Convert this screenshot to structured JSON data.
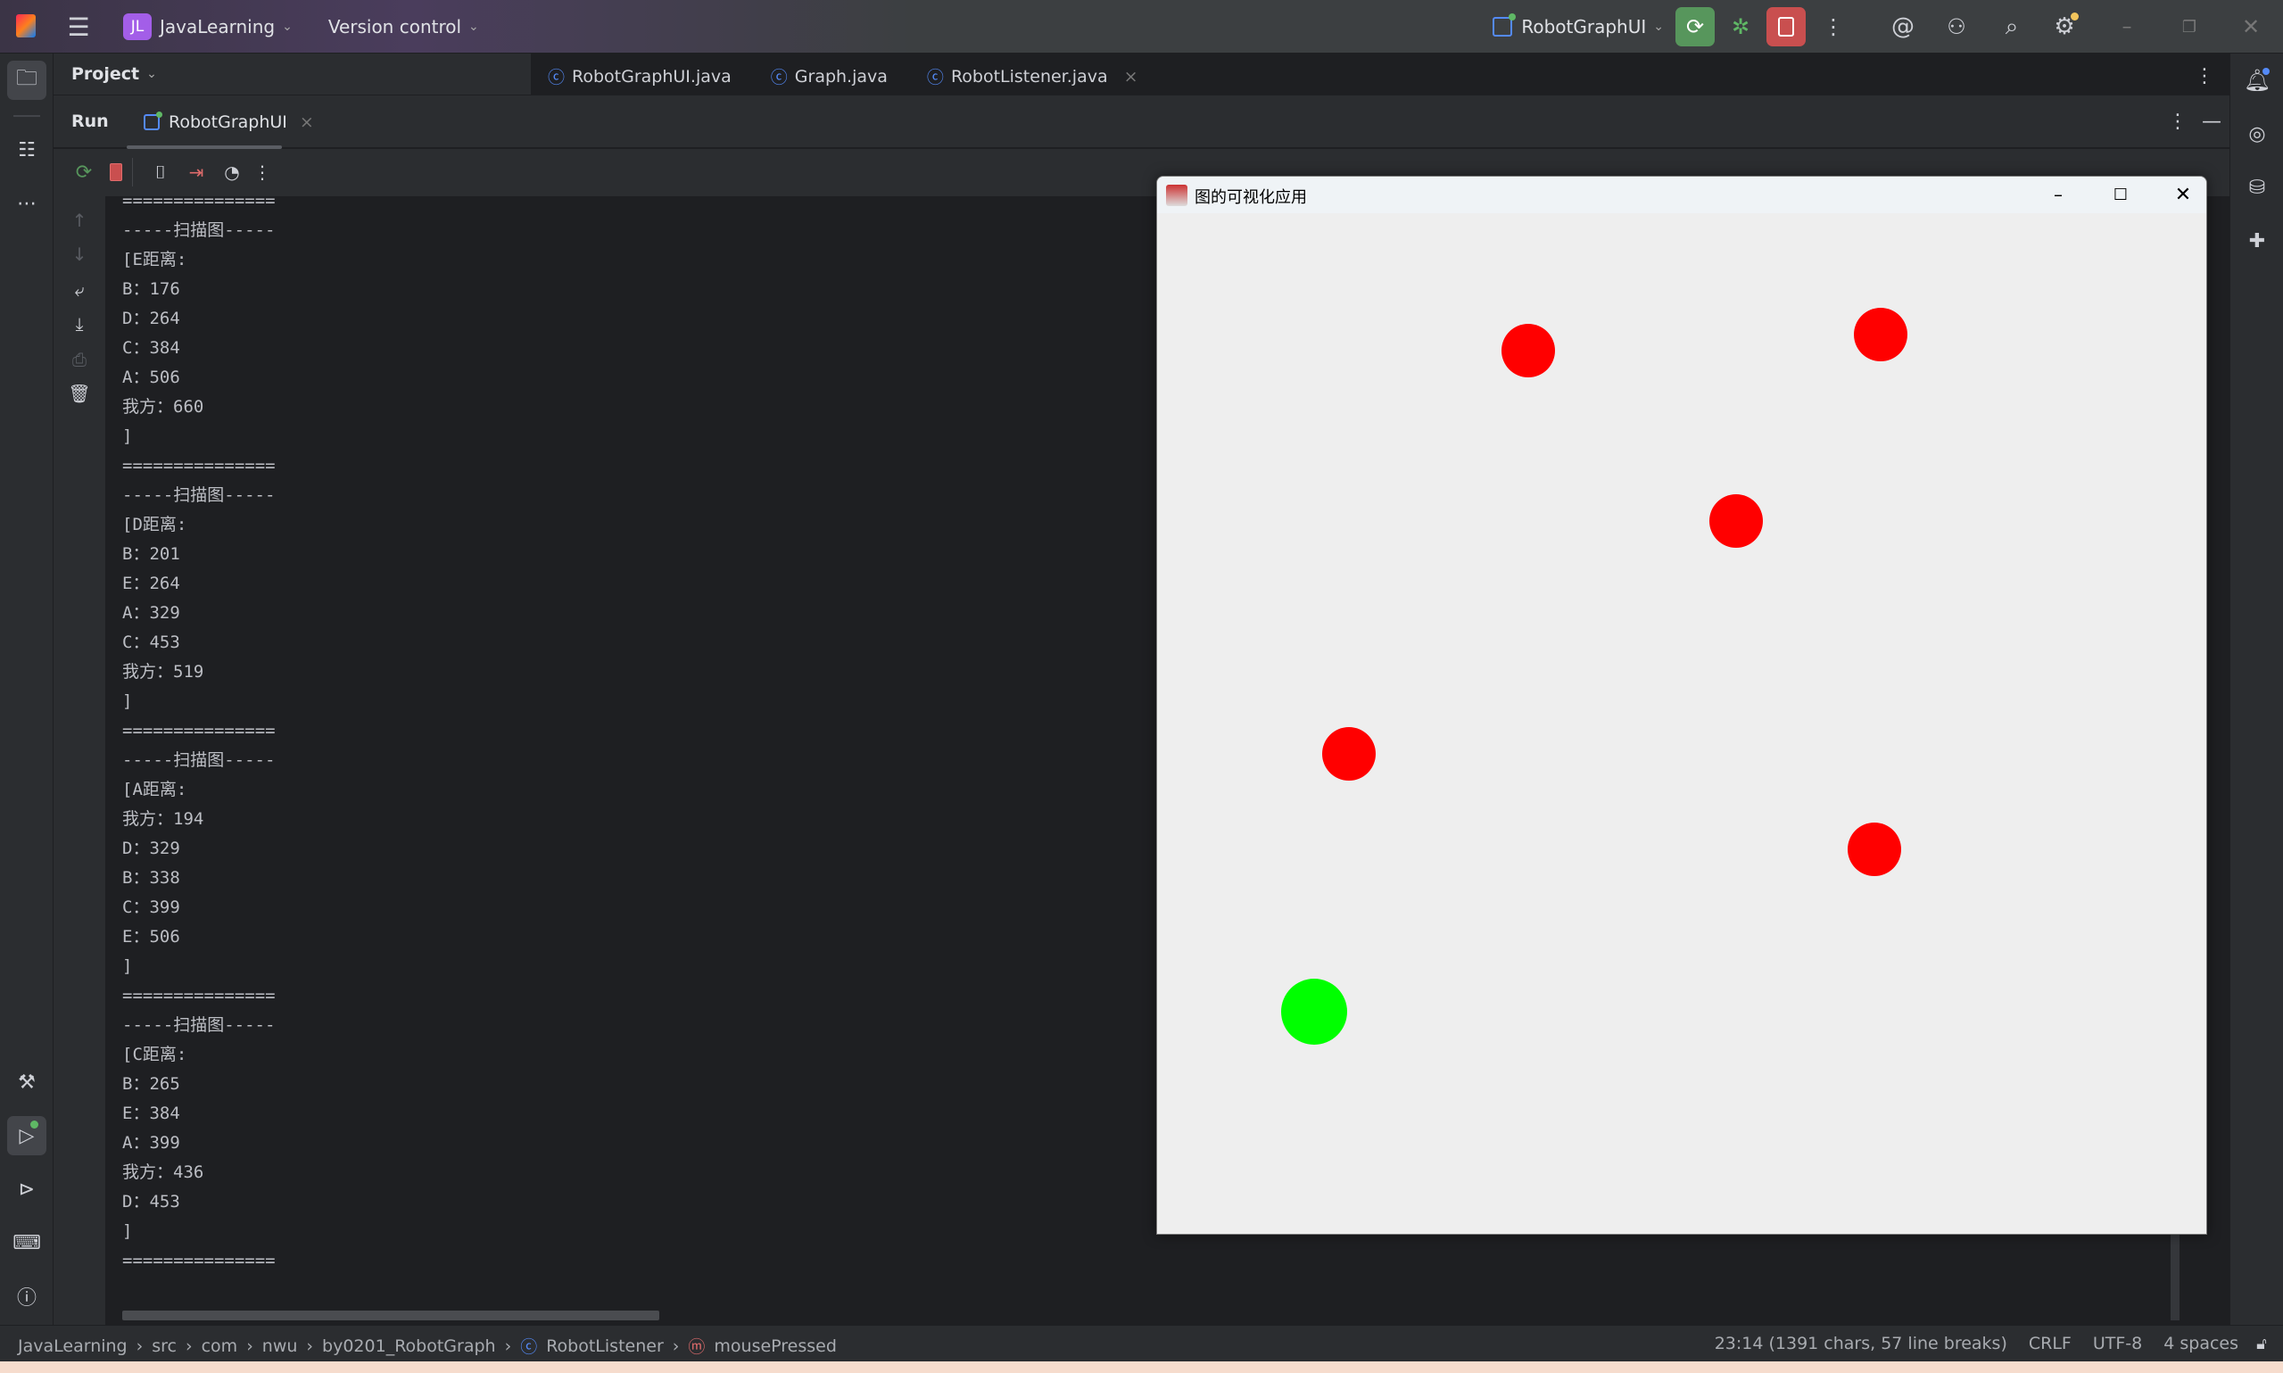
{
  "topbar": {
    "project_badge": "JL",
    "project": "JavaLearning",
    "vcs": "Version control",
    "run_config": "RobotGraphUI"
  },
  "editor_tabs": [
    {
      "label": "RobotGraphUI.java"
    },
    {
      "label": "Graph.java"
    },
    {
      "label": "RobotListener.java"
    }
  ],
  "project_panel": {
    "label": "Project"
  },
  "run_panel": {
    "title": "Run",
    "tab": "RobotGraphUI"
  },
  "console": {
    "lines": [
      "===============",
      "-----扫描图-----",
      "[E距离:",
      "B：176",
      "D：264",
      "C：384",
      "A：506",
      "我方：660",
      "]",
      "===============",
      "-----扫描图-----",
      "[D距离:",
      "B：201",
      "E：264",
      "A：329",
      "C：453",
      "我方：519",
      "]",
      "===============",
      "-----扫描图-----",
      "[A距离:",
      "我方：194",
      "D：329",
      "B：338",
      "C：399",
      "E：506",
      "]",
      "===============",
      "-----扫描图-----",
      "[C距离:",
      "B：265",
      "E：384",
      "A：399",
      "我方：436",
      "D：453",
      "]",
      "==============="
    ]
  },
  "java_window": {
    "title": "图的可视化应用",
    "nodes": [
      {
        "color": "#ff0000"
      },
      {
        "color": "#ff0000"
      },
      {
        "color": "#ff0000"
      },
      {
        "color": "#ff0000"
      },
      {
        "color": "#ff0000"
      },
      {
        "color": "#00ff00"
      }
    ]
  },
  "statusbar": {
    "breadcrumb": [
      "JavaLearning",
      "src",
      "com",
      "nwu",
      "by0201_RobotGraph",
      "RobotListener",
      "mousePressed"
    ],
    "position": "23:14 (1391 chars, 57 line breaks)",
    "line_sep": "CRLF",
    "encoding": "UTF-8",
    "indent": "4 spaces"
  },
  "colors": {
    "run_green": "#57965c",
    "stop_red": "#c94f4f",
    "accent_blue": "#548af7"
  }
}
